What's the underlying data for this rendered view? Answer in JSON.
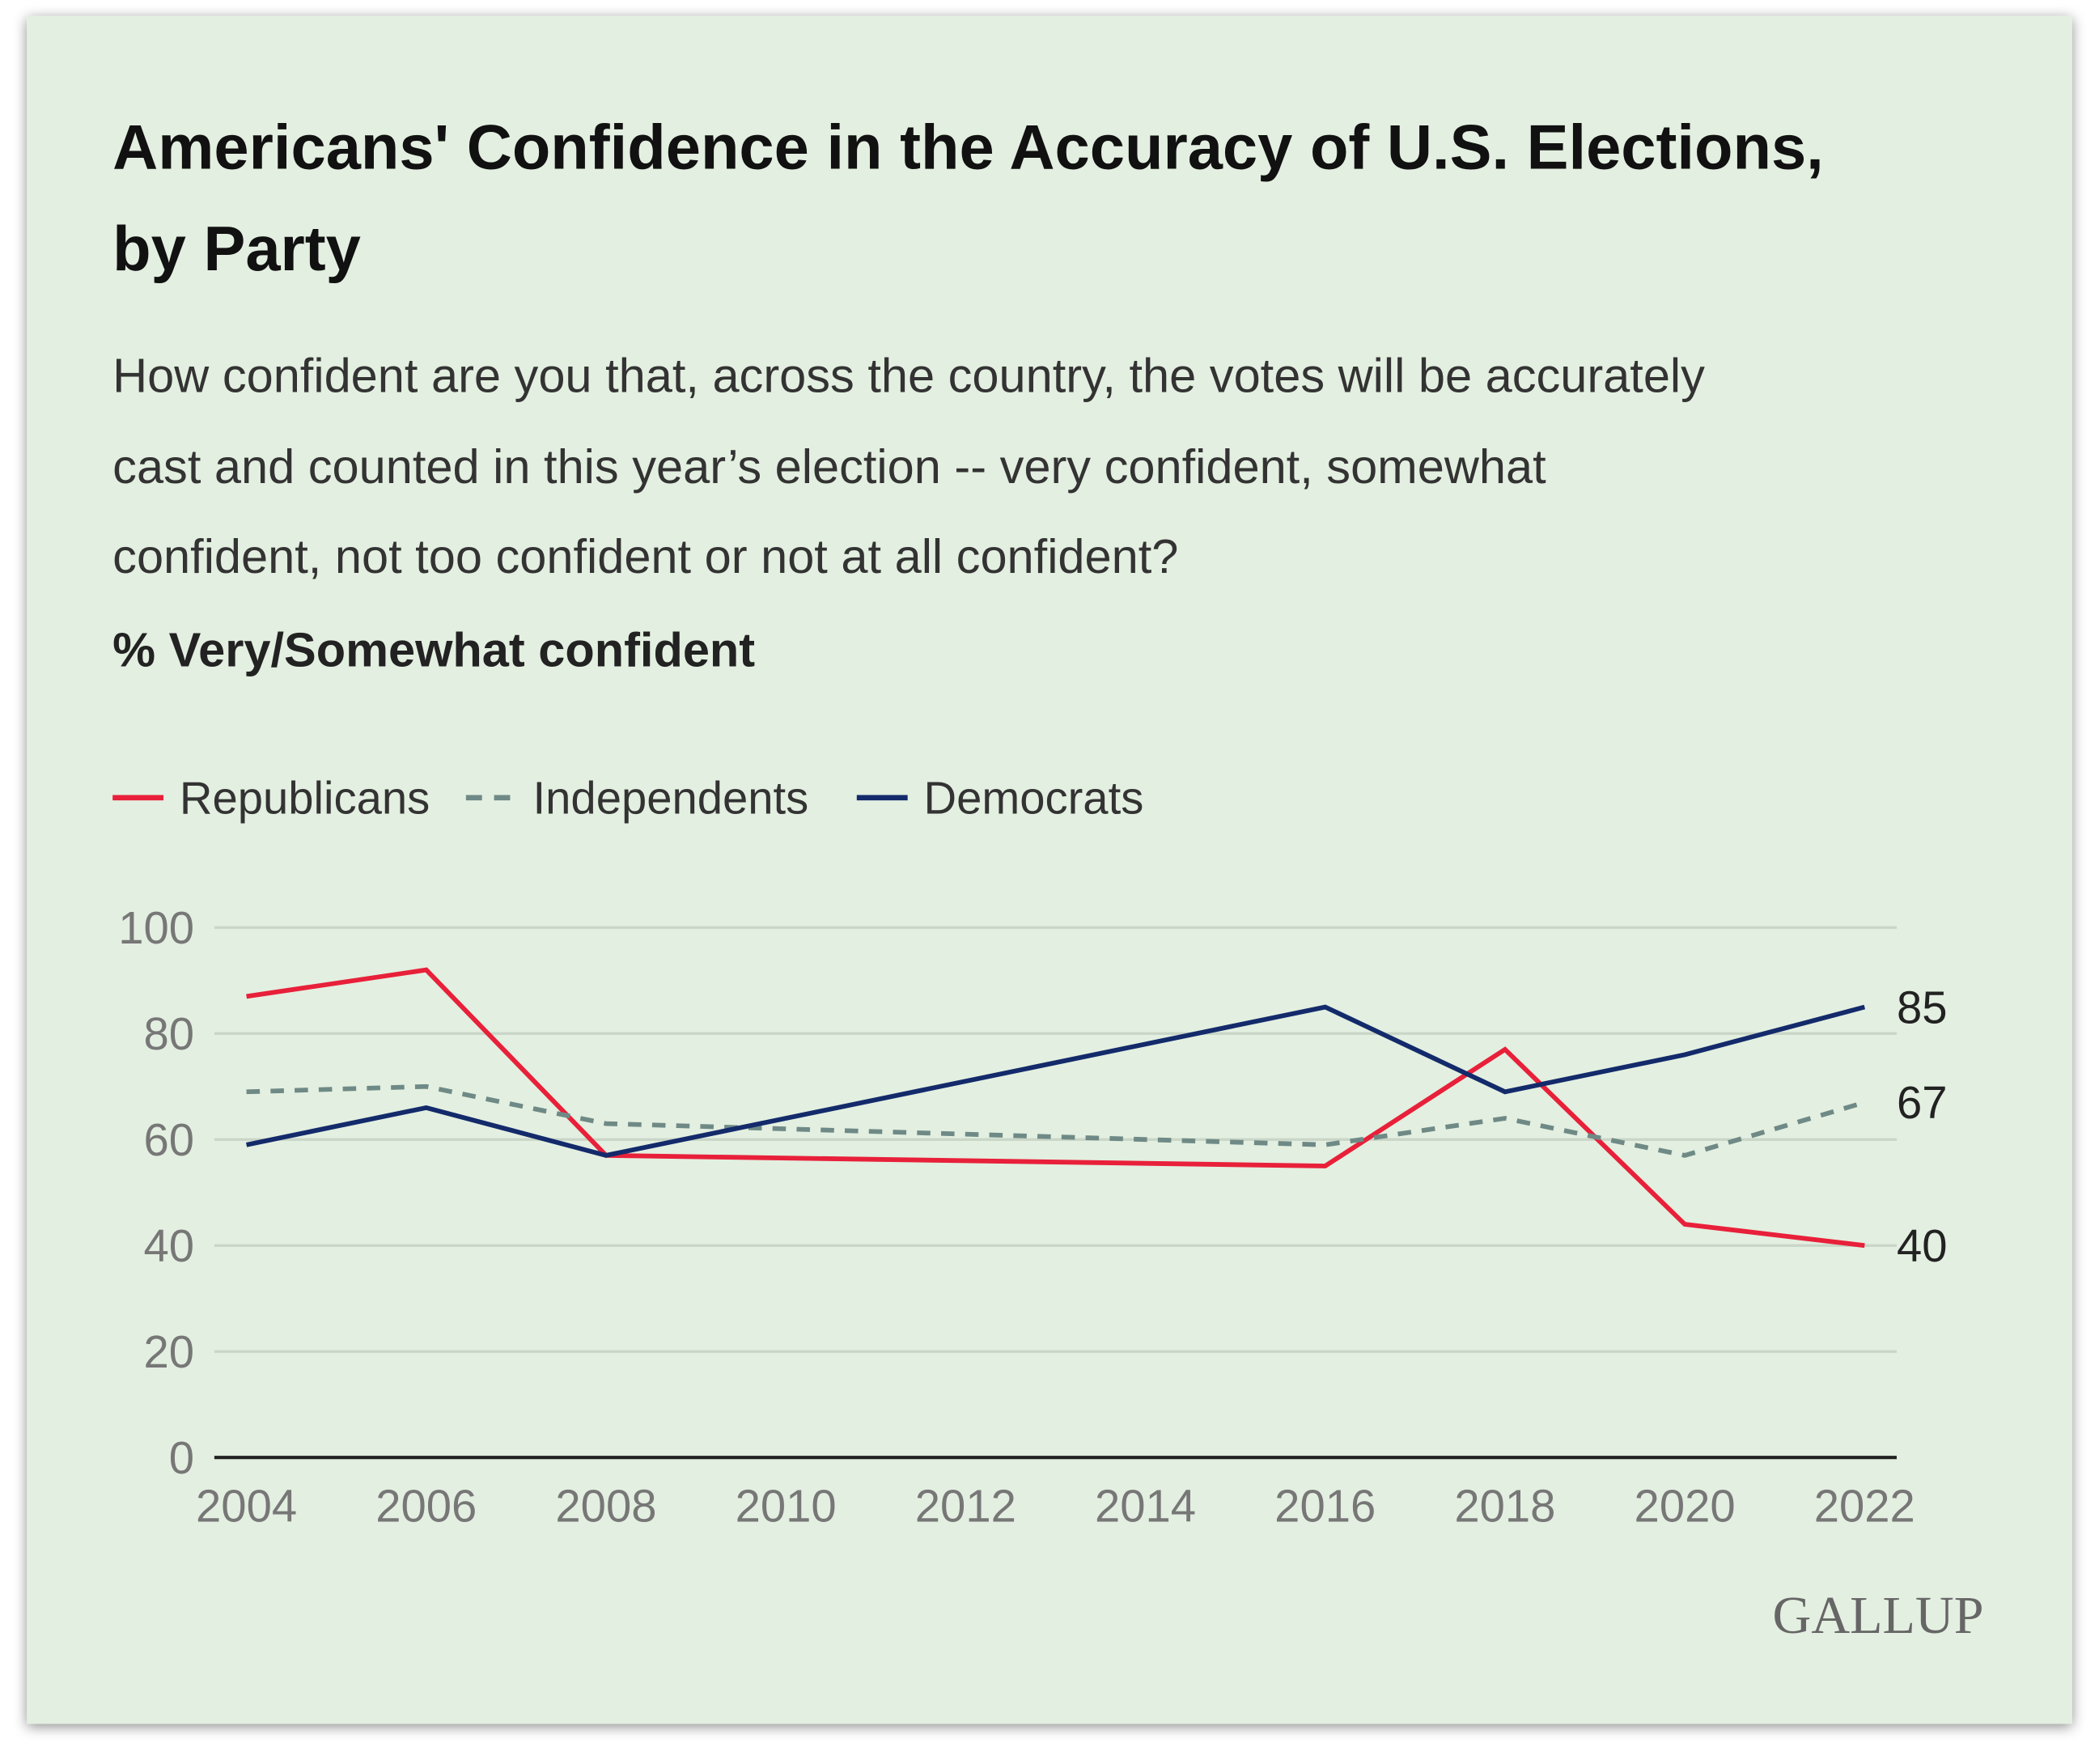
{
  "colors": {
    "background": "#e3efe0",
    "republicans": "#e8203a",
    "independents": "#6f8a86",
    "democrats": "#132a6b",
    "grid": "#c9d5c6"
  },
  "chart_data": {
    "type": "line",
    "title_line1": "Americans' Confidence in the Accuracy of U.S. Elections,",
    "title_line2": "by Party",
    "subtitle_lines": [
      "How confident are you that, across the country, the votes will be accurately",
      "cast and counted in this year’s election -- very confident, somewhat",
      "confident, not too confident or not at all confident?"
    ],
    "ylabel": "% Very/Somewhat confident",
    "xlabel": "",
    "x": [
      2004,
      2006,
      2008,
      2016,
      2018,
      2020,
      2022
    ],
    "xticks": [
      "2004",
      "2006",
      "2008",
      "2010",
      "2012",
      "2014",
      "2016",
      "2018",
      "2020",
      "2022"
    ],
    "yticks": [
      "0",
      "20",
      "40",
      "60",
      "80",
      "100"
    ],
    "xlim": [
      2004,
      2022
    ],
    "ylim": [
      0,
      100
    ],
    "grid": true,
    "legend_position": "top-left",
    "series": [
      {
        "name": "Republicans",
        "key": "republicans",
        "style": "solid",
        "values": [
          87,
          92,
          57,
          55,
          77,
          44,
          40
        ],
        "end_label": "40"
      },
      {
        "name": "Independents",
        "key": "independents",
        "style": "dashed",
        "values": [
          69,
          70,
          63,
          59,
          64,
          57,
          67
        ],
        "end_label": "67"
      },
      {
        "name": "Democrats",
        "key": "democrats",
        "style": "solid",
        "values": [
          59,
          66,
          57,
          85,
          69,
          76,
          85
        ],
        "end_label": "85"
      }
    ],
    "source_logo": "GALLUP"
  }
}
